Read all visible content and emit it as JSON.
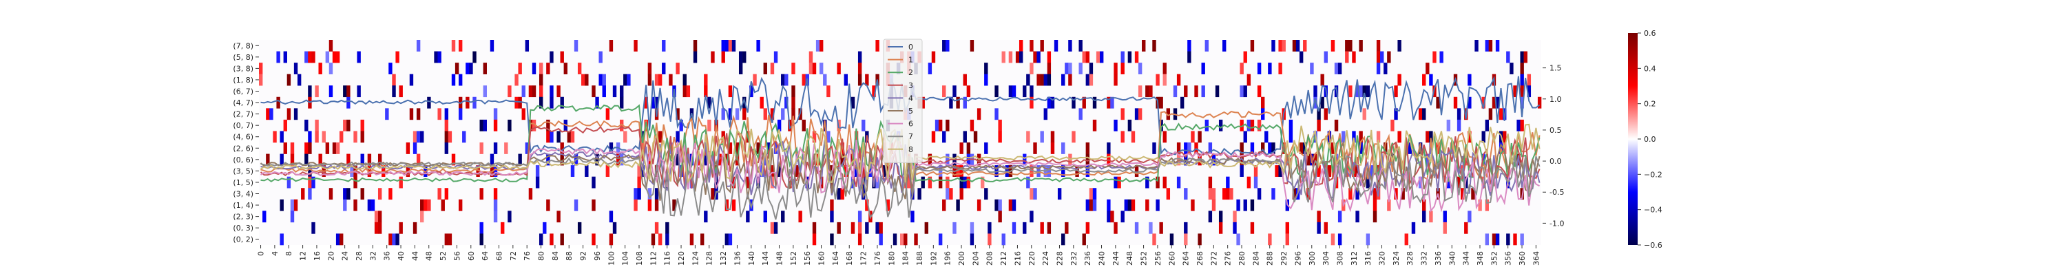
{
  "chart_data": [
    {
      "type": "heatmap",
      "row_labels": [
        "(7, 8)",
        "(5, 8)",
        "(3, 8)",
        "(1, 8)",
        "(6, 7)",
        "(4, 7)",
        "(2, 7)",
        "(0, 7)",
        "(4, 6)",
        "(2, 6)",
        "(0, 6)",
        "(3, 5)",
        "(1, 5)",
        "(3, 4)",
        "(1, 4)",
        "(2, 3)",
        "(0, 3)",
        "(0, 2)"
      ],
      "x_range": [
        0,
        365
      ],
      "x_tick_step": 4,
      "colormap": "seismic (blue-white-red)",
      "colorbar": {
        "vmin": -0.6,
        "vmax": 0.6,
        "ticks": [
          0.6,
          0.4,
          0.2,
          0.0,
          -0.2,
          -0.4,
          -0.6
        ]
      },
      "colors": {
        "negative": "#00004d",
        "mid": "#ffffff",
        "positive": "#7a0000"
      }
    },
    {
      "type": "line",
      "x_range": [
        0,
        365
      ],
      "ylim": [
        -1.35,
        1.95
      ],
      "y_ticks": [
        1.5,
        1.0,
        0.5,
        0.0,
        -0.5,
        -1.0
      ],
      "legend": {
        "placement": "top-center",
        "entries": [
          "0",
          "1",
          "2",
          "3",
          "4",
          "5",
          "6",
          "7",
          "8"
        ]
      },
      "series": [
        {
          "name": "0",
          "color": "#4c72b0"
        },
        {
          "name": "1",
          "color": "#dd8452"
        },
        {
          "name": "2",
          "color": "#55a868"
        },
        {
          "name": "3",
          "color": "#c44e52"
        },
        {
          "name": "4",
          "color": "#8172b3"
        },
        {
          "name": "5",
          "color": "#937860"
        },
        {
          "name": "6",
          "color": "#da8bc3"
        },
        {
          "name": "7",
          "color": "#8c8c8c"
        },
        {
          "name": "8",
          "color": "#ccb974"
        }
      ],
      "segments": [
        {
          "x": [
            0,
            76
          ],
          "levels": [
            0.95,
            -0.15,
            -0.3,
            -0.2,
            -0.1,
            -0.05,
            -0.2,
            -0.05,
            -0.1
          ],
          "noise": 0.03
        },
        {
          "x": [
            77,
            108
          ],
          "levels": [
            0.2,
            0.6,
            0.85,
            0.5,
            0.1,
            0.05,
            0.15,
            0.0,
            -0.05
          ],
          "noise": 0.05
        },
        {
          "x": [
            109,
            186
          ],
          "levels": [
            0.9,
            0.3,
            0.2,
            0.0,
            -0.1,
            -0.2,
            -0.1,
            -0.5,
            0.1
          ],
          "noise": 0.45
        },
        {
          "x": [
            187,
            256
          ],
          "levels": [
            1.0,
            -0.2,
            -0.3,
            0.0,
            -0.1,
            -0.1,
            -0.05,
            -0.15,
            0.05
          ],
          "noise": 0.03
        },
        {
          "x": [
            257,
            291
          ],
          "levels": [
            0.15,
            0.75,
            0.55,
            0.1,
            0.0,
            0.0,
            0.1,
            0.0,
            -0.05
          ],
          "noise": 0.05
        },
        {
          "x": [
            292,
            365
          ],
          "levels": [
            1.0,
            0.1,
            0.05,
            0.0,
            -0.2,
            -0.1,
            -0.4,
            -0.3,
            0.2
          ],
          "noise": 0.4
        }
      ]
    }
  ]
}
